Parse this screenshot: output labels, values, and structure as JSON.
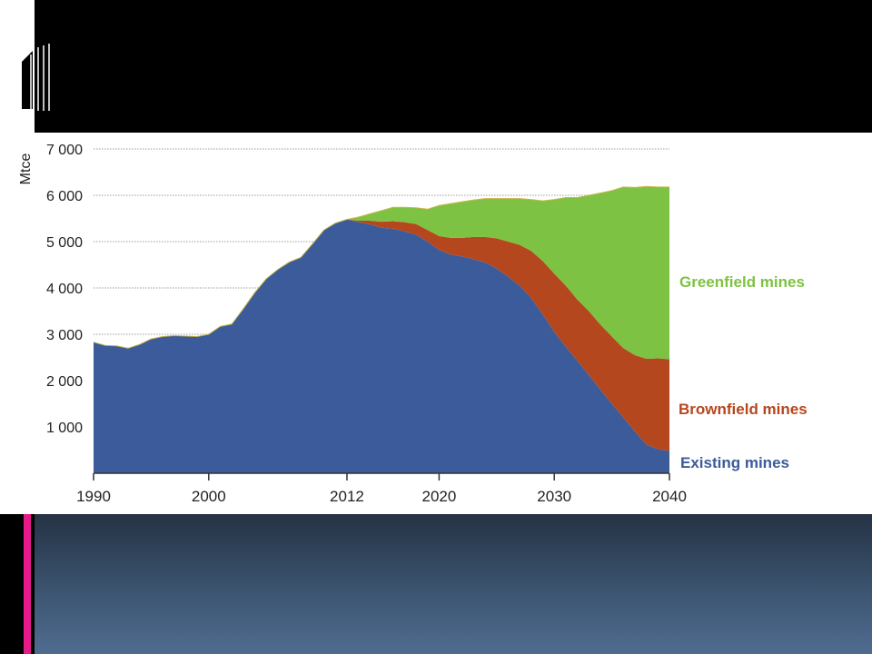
{
  "chart_data": {
    "type": "area",
    "stacked": true,
    "ylabel": "Mtce",
    "ylim": [
      0,
      7000
    ],
    "yticks": [
      1000,
      2000,
      3000,
      4000,
      5000,
      6000,
      7000
    ],
    "ytick_labels": [
      "1 000",
      "2 000",
      "3 000",
      "4 000",
      "5 000",
      "6 000",
      "7 000"
    ],
    "xlim": [
      1990,
      2040
    ],
    "xticks": [
      1990,
      2000,
      2012,
      2020,
      2030,
      2040
    ],
    "xtick_labels": [
      "1990",
      "2000",
      "2012",
      "2020",
      "2030",
      "2040"
    ],
    "grid": "horizontal dotted",
    "x": [
      1990,
      1991,
      1992,
      1993,
      1994,
      1995,
      1996,
      1997,
      1998,
      1999,
      2000,
      2001,
      2002,
      2003,
      2004,
      2005,
      2006,
      2007,
      2008,
      2009,
      2010,
      2011,
      2012,
      2013,
      2014,
      2015,
      2016,
      2017,
      2018,
      2019,
      2020,
      2021,
      2022,
      2023,
      2024,
      2025,
      2026,
      2027,
      2028,
      2029,
      2030,
      2031,
      2032,
      2033,
      2034,
      2035,
      2036,
      2037,
      2038,
      2039,
      2040
    ],
    "series": [
      {
        "name": "Existing mines",
        "color": "#3b5b9a",
        "values": [
          2830,
          2760,
          2750,
          2700,
          2780,
          2900,
          2950,
          2970,
          2960,
          2950,
          3000,
          3170,
          3220,
          3550,
          3900,
          4200,
          4400,
          4560,
          4660,
          4950,
          5250,
          5400,
          5480,
          5420,
          5370,
          5300,
          5280,
          5220,
          5150,
          5000,
          4820,
          4720,
          4680,
          4620,
          4550,
          4420,
          4240,
          4050,
          3780,
          3430,
          3050,
          2730,
          2430,
          2120,
          1810,
          1500,
          1200,
          900,
          620,
          520,
          480
        ]
      },
      {
        "name": "Brownfield mines",
        "color": "#b5471e",
        "values": [
          0,
          0,
          0,
          0,
          0,
          0,
          0,
          0,
          0,
          0,
          0,
          0,
          0,
          0,
          0,
          0,
          0,
          0,
          0,
          0,
          0,
          0,
          0,
          30,
          80,
          130,
          160,
          200,
          230,
          250,
          300,
          360,
          400,
          480,
          550,
          650,
          760,
          880,
          1020,
          1150,
          1260,
          1320,
          1320,
          1380,
          1400,
          1450,
          1500,
          1650,
          1850,
          1960,
          1980
        ]
      },
      {
        "name": "Greenfield mines",
        "color": "#7dc243",
        "values": [
          0,
          0,
          0,
          0,
          0,
          0,
          0,
          0,
          0,
          0,
          0,
          0,
          0,
          0,
          0,
          0,
          0,
          0,
          0,
          0,
          0,
          0,
          0,
          80,
          150,
          240,
          300,
          320,
          350,
          450,
          660,
          740,
          780,
          800,
          830,
          860,
          930,
          1000,
          1110,
          1300,
          1600,
          1900,
          2200,
          2500,
          2840,
          3150,
          3480,
          3620,
          3720,
          3700,
          3720
        ]
      }
    ]
  },
  "colors": {
    "background_top": "#000000",
    "chart_background": "#ffffff",
    "accent_bar": "#e8198b",
    "bottom_band": "#3c5470"
  }
}
